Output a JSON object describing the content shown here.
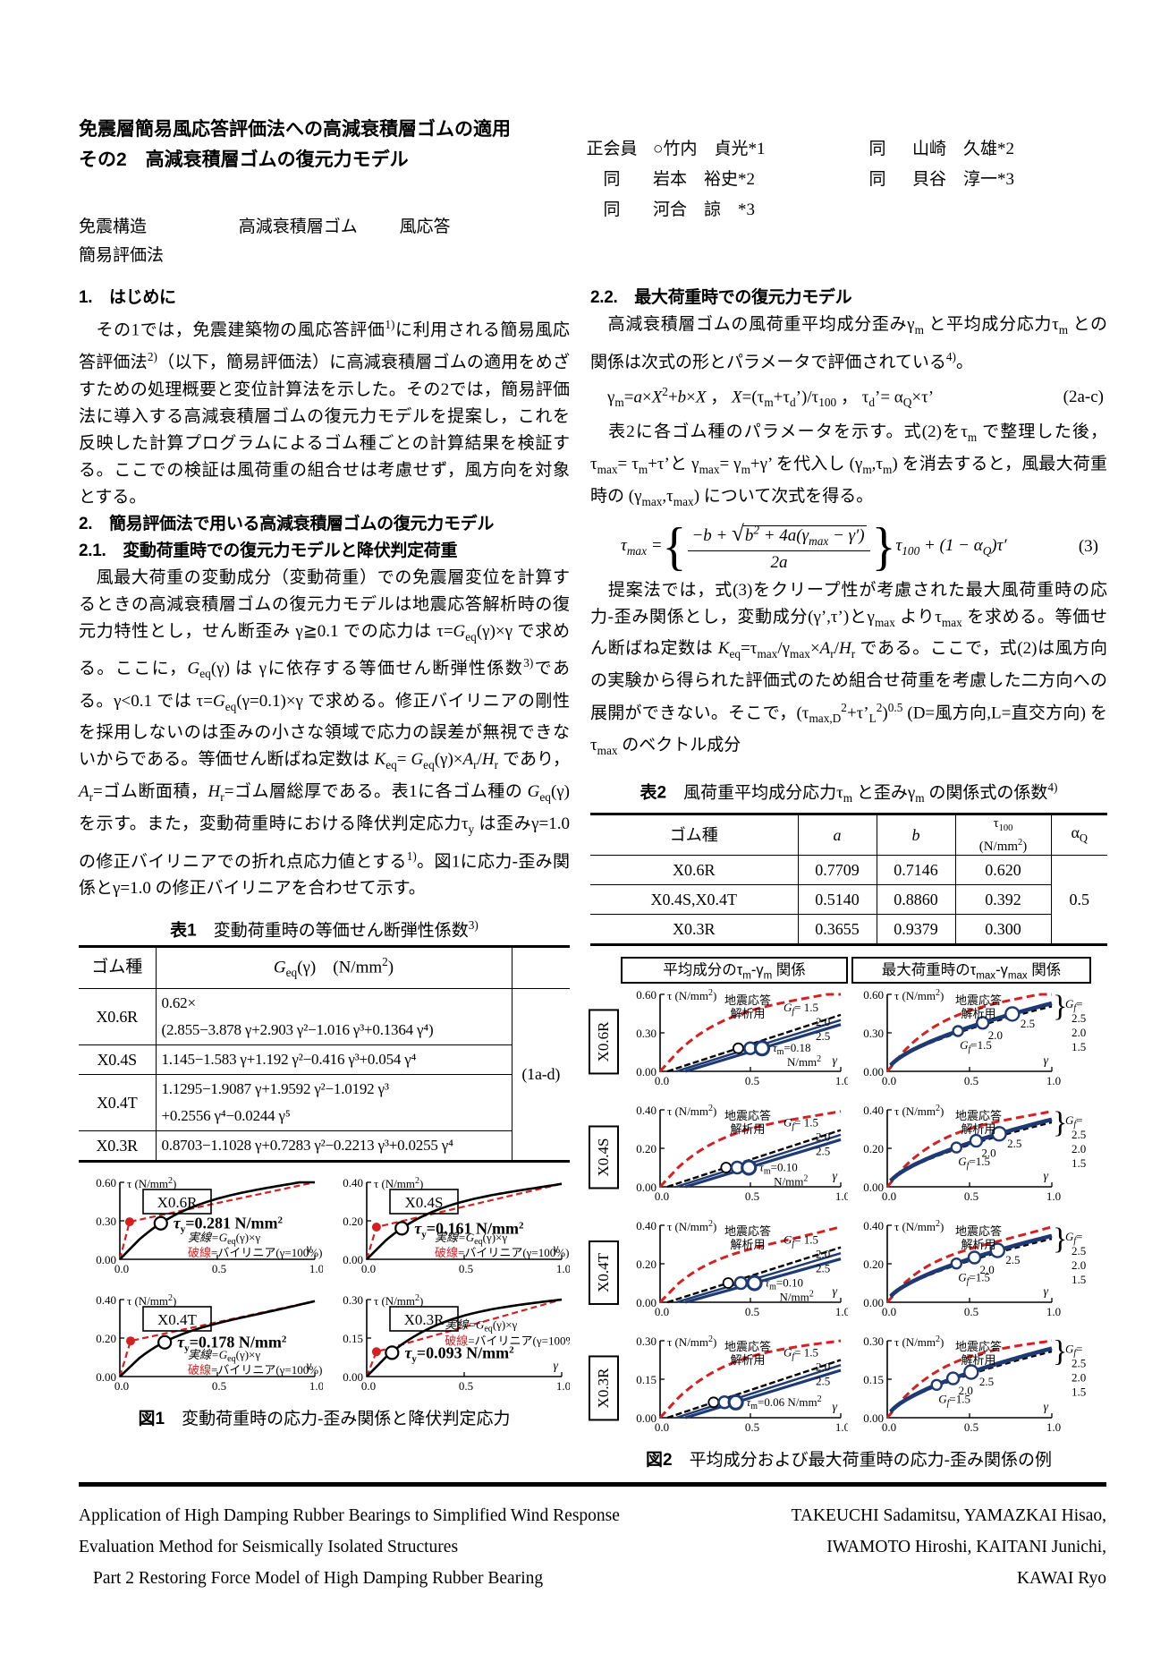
{
  "colors": {
    "red": "#d42020",
    "navy": "#1e3a73",
    "black": "#000000"
  },
  "header": {
    "title_line1": "免震層簡易風応答評価法への高減衰積層ゴムの適用",
    "title_line2": "その2　高減衰積層ゴムの復元力モデル",
    "authors": {
      "r1c1": "正会員",
      "r1c2": "○竹内　貞光*1",
      "r1c3": "同",
      "r1c4": "山崎　久雄*2",
      "r2c1": "同",
      "r2c2": "岩本　裕史*2",
      "r2c3": "同",
      "r2c4": "貝谷　淳一*3",
      "r3c1": "同",
      "r3c2": "河合　諒　*3"
    },
    "kw1": "免震構造",
    "kw2": "高減衰積層ゴム",
    "kw3": "風応答",
    "kw4": "簡易評価法"
  },
  "left": {
    "h1": "1.　はじめに",
    "p1_runs": [
      [
        "　その1では，免震建築物の風応答評価",
        ""
      ],
      [
        "1)",
        "sup"
      ],
      [
        "に利用される簡易風応答評価法",
        ""
      ],
      [
        "2)",
        "sup"
      ],
      [
        "（以下，簡易評価法）に高減衰積層ゴムの適用をめざすための処理概要と変位計算法を示した。その2では，簡易評価法に導入する高減衰積層ゴムの復元力モデルを提案し，これを反映した計算プログラムによるゴム種ごとの計算結果を検証する。ここでの検証は風荷重の組合せは考慮せず，風方向を対象とする。",
        ""
      ]
    ],
    "h2": "2.　簡易評価法で用いる高減衰積層ゴムの復元力モデル",
    "h21": "2.1.　変動荷重時での復元力モデルと降伏判定荷重",
    "p2_runs": [
      [
        "　風最大荷重の変動成分（変動荷重）での免震層変位を計算するときの高減衰積層ゴムの復元力モデルは地震応答解析時の復元力特性とし，せん断歪み γ≧0.1 での応力は τ=",
        ""
      ],
      [
        "G",
        "i"
      ],
      [
        "eq",
        "sub"
      ],
      [
        "(γ)×γ で求める。ここに，",
        ""
      ],
      [
        "G",
        "i"
      ],
      [
        "eq",
        "sub"
      ],
      [
        "(γ) は γに依存する等価せん断弾性係数",
        ""
      ],
      [
        "3)",
        "sup"
      ],
      [
        "である。γ<0.1 では τ=",
        ""
      ],
      [
        "G",
        "i"
      ],
      [
        "eq",
        "sub"
      ],
      [
        "(γ=0.1)×γ で求める。修正バイリニアの剛性を採用しないのは歪みの小さな領域で応力の誤差が無視できないからである。等価せん断ばね定数は ",
        ""
      ],
      [
        "K",
        "i"
      ],
      [
        "eq",
        "sub"
      ],
      [
        "= ",
        ""
      ],
      [
        "G",
        "i"
      ],
      [
        "eq",
        "sub"
      ],
      [
        "(γ)×",
        ""
      ],
      [
        "A",
        "i"
      ],
      [
        "r",
        "sub"
      ],
      [
        "/",
        ""
      ],
      [
        "H",
        "i"
      ],
      [
        "r",
        "sub"
      ],
      [
        " であり，",
        ""
      ],
      [
        "A",
        "i"
      ],
      [
        "r",
        "sub"
      ],
      [
        "=ゴム断面積，",
        ""
      ],
      [
        "H",
        "i"
      ],
      [
        "r",
        "sub"
      ],
      [
        "=ゴム層総厚である。表1に各ゴム種の ",
        ""
      ],
      [
        "G",
        "i"
      ],
      [
        "eq",
        "sub"
      ],
      [
        "(γ) を示す。また，変動荷重時における降伏判定応力τ",
        ""
      ],
      [
        "y",
        "sub"
      ],
      [
        " は歪みγ=1.0 の修正バイリニアでの折れ点応力値とする",
        ""
      ],
      [
        "1)",
        "sup"
      ],
      [
        "。図1に応力-歪み関係とγ=1.0 の修正バイリニアを合わせて示す。",
        ""
      ]
    ]
  },
  "right": {
    "h22": "2.2.　最大荷重時での復元力モデル",
    "p1_runs": [
      [
        "　高減衰積層ゴムの風荷重平均成分歪みγ",
        ""
      ],
      [
        "m",
        "sub"
      ],
      [
        " と平均成分応力τ",
        ""
      ],
      [
        "m",
        "sub"
      ],
      [
        " との関係は次式の形とパラメータで評価されている",
        ""
      ],
      [
        "4)",
        "sup"
      ],
      [
        "。",
        ""
      ]
    ],
    "eq2_runs": [
      [
        "　γ",
        ""
      ],
      [
        "m",
        "sub"
      ],
      [
        "=",
        ""
      ],
      [
        "a",
        "i"
      ],
      [
        "×",
        ""
      ],
      [
        "X",
        "i"
      ],
      [
        "2",
        "sup"
      ],
      [
        "+",
        ""
      ],
      [
        "b",
        "i"
      ],
      [
        "×",
        ""
      ],
      [
        "X",
        "i"
      ],
      [
        " ， ",
        ""
      ],
      [
        "X",
        "i"
      ],
      [
        "=(τ",
        ""
      ],
      [
        "m",
        "sub"
      ],
      [
        "+τ",
        ""
      ],
      [
        "d",
        "sub"
      ],
      [
        "’)/τ",
        ""
      ],
      [
        "100",
        "sub"
      ],
      [
        " ， τ",
        ""
      ],
      [
        "d",
        "sub"
      ],
      [
        "’= α",
        ""
      ],
      [
        "Q",
        "sub"
      ],
      [
        "×τ’",
        ""
      ]
    ],
    "eq2_no": "(2a-c)",
    "p2_runs": [
      [
        "　表2に各ゴム種のパラメータを示す。式(2)をτ",
        ""
      ],
      [
        "m",
        "sub"
      ],
      [
        " で整理した後，τ",
        ""
      ],
      [
        "max",
        "sub"
      ],
      [
        "= τ",
        ""
      ],
      [
        "m",
        "sub"
      ],
      [
        "+τ’と γ",
        ""
      ],
      [
        "max",
        "sub"
      ],
      [
        "= γ",
        ""
      ],
      [
        "m",
        "sub"
      ],
      [
        "+γ’ を代入し (γ",
        ""
      ],
      [
        "m",
        "sub"
      ],
      [
        ",τ",
        ""
      ],
      [
        "m",
        "sub"
      ],
      [
        ") を消去すると，風最大荷重時の (γ",
        ""
      ],
      [
        "max",
        "sub"
      ],
      [
        ",τ",
        ""
      ],
      [
        "max",
        "sub"
      ],
      [
        ") について次式を得る。",
        ""
      ]
    ],
    "eq3": {
      "lhs_runs": [
        [
          "τ",
          ""
        ],
        [
          "max",
          "sub"
        ],
        [
          " = ",
          ""
        ]
      ],
      "num_pre": "−b + ",
      "sqrt_runs": [
        [
          "b",
          ""
        ],
        [
          "2",
          "sup"
        ],
        [
          " + 4a(γ",
          ""
        ],
        [
          "max",
          "sub"
        ],
        [
          " − γ′)",
          ""
        ]
      ],
      "den": "2a",
      "tail_runs": [
        [
          "τ",
          ""
        ],
        [
          "100",
          "sub"
        ],
        [
          " + (1 − α",
          ""
        ],
        [
          "Q",
          "sub"
        ],
        [
          ")τ′",
          ""
        ]
      ],
      "no": "(3)"
    },
    "p3_runs": [
      [
        "　提案法では，式(3)をクリープ性が考慮された最大風荷重時の応力-歪み関係とし，変動成分(γ’,τ’)とγ",
        ""
      ],
      [
        "max",
        "sub"
      ],
      [
        " よりτ",
        ""
      ],
      [
        "max",
        "sub"
      ],
      [
        " を求める。等価せん断ばね定数は ",
        ""
      ],
      [
        "K",
        "i"
      ],
      [
        "eq",
        "sub"
      ],
      [
        "=τ",
        ""
      ],
      [
        "max",
        "sub"
      ],
      [
        "/γ",
        ""
      ],
      [
        "max",
        "sub"
      ],
      [
        "×",
        ""
      ],
      [
        "A",
        "i"
      ],
      [
        "r",
        "sub"
      ],
      [
        "/",
        ""
      ],
      [
        "H",
        "i"
      ],
      [
        "r",
        "sub"
      ],
      [
        " である。ここで，式(2)は風方向の実験から得られた評価式のため組合せ荷重を考慮した二方向への展開ができない。そこで，(τ",
        ""
      ],
      [
        "max,D",
        "sub"
      ],
      [
        "2",
        "sup"
      ],
      [
        "+τ’",
        ""
      ],
      [
        "L",
        "sub"
      ],
      [
        "2",
        "sup"
      ],
      [
        ")",
        ""
      ],
      [
        "0.5",
        "sup"
      ],
      [
        " (D=風方向,L=直交方向) を τ",
        ""
      ],
      [
        "max",
        "sub"
      ],
      [
        " のベクトル成分",
        ""
      ]
    ]
  },
  "table1": {
    "caption_runs": [
      [
        "表1",
        "b"
      ],
      [
        "　変動荷重時の等価せん断弾性係数",
        ""
      ],
      [
        "3)",
        "sup"
      ]
    ],
    "col1": "ゴム種",
    "col2_runs": [
      [
        "G",
        "i"
      ],
      [
        "eq",
        "sub"
      ],
      [
        "(γ)　(N/mm",
        ""
      ],
      [
        "2",
        "sup"
      ],
      [
        ")",
        ""
      ]
    ],
    "eqno": "(1a-d)",
    "rows": [
      {
        "type": "X0.6R",
        "lines": [
          "0.62×",
          "(2.855−3.878 γ+2.903 γ²−1.016 γ³+0.1364 γ⁴)"
        ]
      },
      {
        "type": "X0.4S",
        "lines": [
          "1.145−1.583 γ+1.192 γ²−0.416 γ³+0.054 γ⁴"
        ]
      },
      {
        "type": "X0.4T",
        "lines": [
          "1.1295−1.9087 γ+1.9592 γ²−1.0192 γ³",
          "+0.2556 γ⁴−0.0244 γ⁵"
        ]
      },
      {
        "type": "X0.3R",
        "lines": [
          "0.8703−1.1028 γ+0.7283 γ²−0.2213 γ³+0.0255 γ⁴"
        ]
      }
    ]
  },
  "table2": {
    "caption_runs": [
      [
        "表2",
        "b"
      ],
      [
        "　風荷重平均成分応力τ",
        ""
      ],
      [
        "m",
        "sub"
      ],
      [
        " と歪みγ",
        ""
      ],
      [
        "m",
        "sub"
      ],
      [
        " の関係式の係数",
        ""
      ],
      [
        "4)",
        "sup"
      ]
    ],
    "h1": "ゴム種",
    "h2_runs": [
      [
        "a",
        "i"
      ]
    ],
    "h3_runs": [
      [
        "b",
        "i"
      ]
    ],
    "h4a_runs": [
      [
        "τ",
        ""
      ],
      [
        "100",
        "sub"
      ]
    ],
    "h4b_runs": [
      [
        "(N/mm",
        ""
      ],
      [
        "2",
        "sup"
      ],
      [
        ")",
        ""
      ]
    ],
    "h5_runs": [
      [
        "α",
        ""
      ],
      [
        "Q",
        "sub"
      ]
    ],
    "rows": [
      {
        "type": "X0.6R",
        "a": "0.7709",
        "b": "0.7146",
        "t100": "0.620"
      },
      {
        "type": "X0.4S,X0.4T",
        "a": "0.5140",
        "b": "0.8860",
        "t100": "0.392"
      },
      {
        "type": "X0.3R",
        "a": "0.3655",
        "b": "0.9379",
        "t100": "0.300"
      }
    ],
    "alpha_q": "0.5"
  },
  "fig1_caption_runs": [
    [
      "図1",
      "b"
    ],
    [
      "　変動荷重時の応力-歪み関係と降伏判定応力",
      ""
    ]
  ],
  "fig2_caption_runs": [
    [
      "図2",
      "b"
    ],
    [
      "　平均成分および最大荷重時の応力-歪み関係の例",
      ""
    ]
  ],
  "chart_data": {
    "common": {
      "x_ticks": [
        "0.0",
        "0.5",
        "1.0"
      ],
      "xlabel": "γ",
      "ylabel": "τ (N/mm2)",
      "grid": false
    },
    "fig1": {
      "type": "line",
      "legend_solid": "実線=Geq(γ)×γ",
      "legend_dash": "破線=バイリニア(γ=100%)",
      "charts": [
        {
          "label": "X0.6R",
          "ylim": [
            0,
            0.6
          ],
          "yticks": [
            "0.00",
            "0.30",
            "0.60"
          ],
          "geq_coef": [
            2.855,
            -3.878,
            2.903,
            -1.016,
            0.1364
          ],
          "geq_scale": 0.62,
          "tau_y": 0.281,
          "tau_y_label": "0.281",
          "knee_gamma": 0.05,
          "legend": "below"
        },
        {
          "label": "X0.4S",
          "ylim": [
            0,
            0.4
          ],
          "yticks": [
            "0.00",
            "0.20",
            "0.40"
          ],
          "geq_coef": [
            1.145,
            -1.583,
            1.192,
            -0.416,
            0.054
          ],
          "geq_scale": 1,
          "tau_y": 0.161,
          "tau_y_label": "0.161",
          "knee_gamma": 0.05,
          "legend": "below"
        },
        {
          "label": "X0.4T",
          "ylim": [
            0,
            0.4
          ],
          "yticks": [
            "0.00",
            "0.20",
            "0.40"
          ],
          "geq_coef": [
            1.1295,
            -1.9087,
            1.9592,
            -1.0192,
            0.2556,
            -0.0244
          ],
          "geq_scale": 1,
          "tau_y": 0.178,
          "tau_y_label": "0.178",
          "knee_gamma": 0.055,
          "legend": "below"
        },
        {
          "label": "X0.3R",
          "ylim": [
            0,
            0.3
          ],
          "yticks": [
            "0.00",
            "0.15",
            "0.30"
          ],
          "geq_coef": [
            0.8703,
            -1.1028,
            0.7283,
            -0.2213,
            0.0255
          ],
          "geq_scale": 1,
          "tau_y": 0.093,
          "tau_y_label": "0.093",
          "knee_gamma": 0.05,
          "legend": "right"
        }
      ]
    },
    "fig2": {
      "type": "line",
      "col1_runs": [
        [
          "平均成分のτ",
          ""
        ],
        [
          "m",
          "sub"
        ],
        [
          "-γ",
          ""
        ],
        [
          "m",
          "sub"
        ],
        [
          " 関係",
          ""
        ]
      ],
      "col2_runs": [
        [
          "最大荷重時のτ",
          ""
        ],
        [
          "max",
          "sub"
        ],
        [
          "-γ",
          ""
        ],
        [
          "max",
          "sub"
        ],
        [
          " 関係",
          ""
        ]
      ],
      "seismic_label": [
        "地震応答",
        "解析用"
      ],
      "gf_left_labels": [
        "1.5",
        "2.0",
        "2.5"
      ],
      "gf_right_labels": [
        "2.5",
        "2.0",
        "1.5"
      ],
      "rows": [
        {
          "label": "X0.6R",
          "ylim": [
            0,
            0.6
          ],
          "yticks": [
            "0.00",
            "0.30",
            "0.60"
          ],
          "geq_coef": [
            2.855,
            -3.878,
            2.903,
            -1.016,
            0.1364
          ],
          "geq_scale": 0.62,
          "tau_m": 0.18,
          "tau_m_label": "0.18",
          "two_line_unit": true,
          "left_lines": [
            {
              "x0": 0.04,
              "y1": 0.44
            },
            {
              "x0": 0.09,
              "y1": 0.4
            },
            {
              "x0": 0.14,
              "y1": 0.365
            }
          ],
          "right_end": 0.53,
          "right_circles": [
            0.43,
            0.58,
            0.76
          ]
        },
        {
          "label": "X0.4S",
          "ylim": [
            0,
            0.4
          ],
          "yticks": [
            "0.00",
            "0.20",
            "0.40"
          ],
          "geq_coef": [
            1.145,
            -1.583,
            1.192,
            -0.416,
            0.054
          ],
          "geq_scale": 1,
          "tau_m": 0.1,
          "tau_m_label": "0.10",
          "two_line_unit": true,
          "left_lines": [
            {
              "x0": 0.04,
              "y1": 0.295
            },
            {
              "x0": 0.09,
              "y1": 0.27
            },
            {
              "x0": 0.14,
              "y1": 0.245
            }
          ],
          "right_end": 0.35,
          "right_circles": [
            0.42,
            0.54,
            0.68
          ]
        },
        {
          "label": "X0.4T",
          "ylim": [
            0,
            0.4
          ],
          "yticks": [
            "0.00",
            "0.20",
            "0.40"
          ],
          "geq_coef": [
            1.1295,
            -1.9087,
            1.9592,
            -1.0192,
            0.2556,
            -0.0244
          ],
          "geq_scale": 1,
          "tau_m": 0.1,
          "tau_m_label": "0.10",
          "two_line_unit": true,
          "left_lines": [
            {
              "x0": 0.04,
              "y1": 0.285
            },
            {
              "x0": 0.09,
              "y1": 0.255
            },
            {
              "x0": 0.14,
              "y1": 0.225
            }
          ],
          "right_end": 0.345,
          "right_circles": [
            0.42,
            0.53,
            0.67
          ]
        },
        {
          "label": "X0.3R",
          "ylim": [
            0,
            0.3
          ],
          "yticks": [
            "0.00",
            "0.15",
            "0.30"
          ],
          "geq_coef": [
            0.8703,
            -1.1028,
            0.7283,
            -0.2213,
            0.0255
          ],
          "geq_scale": 1,
          "tau_m": 0.06,
          "tau_m_label": "0.06",
          "two_line_unit": false,
          "left_lines": [
            {
              "x0": 0.04,
              "y1": 0.225
            },
            {
              "x0": 0.09,
              "y1": 0.205
            },
            {
              "x0": 0.14,
              "y1": 0.185
            }
          ],
          "right_end": 0.27,
          "right_circles": [
            0.3,
            0.4,
            0.51
          ]
        }
      ]
    }
  },
  "footer": {
    "en_title": [
      "Application of High Damping Rubber Bearings to Simplified Wind Response",
      "Evaluation Method for Seismically Isolated Structures",
      "Part 2 Restoring Force Model of High Damping Rubber Bearing"
    ],
    "en_authors": [
      "TAKEUCHI  Sadamitsu,  YAMAZKAI  Hisao,",
      "IWAMOTO Hiroshi, KAITANI Junichi,",
      "KAWAI Ryo"
    ]
  }
}
